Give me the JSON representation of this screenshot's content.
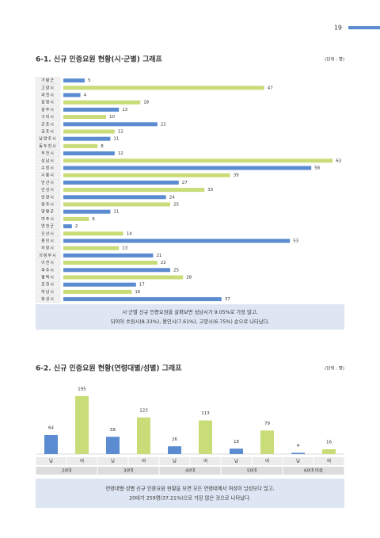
{
  "page_number": "19",
  "chart_data": [
    {
      "type": "hbar",
      "title": "6-1. 신규 인증요원 현황(시·군별) 그래프",
      "unit": "(단위 : 명)",
      "categories": [
        "가평군",
        "고양시",
        "과천시",
        "광명시",
        "광주시",
        "구리시",
        "군포시",
        "김포시",
        "남양주시",
        "동두천시",
        "부천시",
        "성남시",
        "수원시",
        "시흥시",
        "안산시",
        "안성시",
        "안양시",
        "양주시",
        "양평군",
        "여주시",
        "연천군",
        "오산시",
        "용인시",
        "의왕시",
        "의정부시",
        "이천시",
        "파주시",
        "평택시",
        "포천시",
        "하남시",
        "화성시"
      ],
      "values": [
        5,
        47,
        4,
        18,
        13,
        10,
        22,
        12,
        11,
        8,
        12,
        63,
        58,
        39,
        27,
        33,
        24,
        25,
        11,
        6,
        2,
        14,
        53,
        13,
        21,
        22,
        25,
        28,
        17,
        16,
        37
      ],
      "colors": [
        "#5b8bd0",
        "#c8dc78"
      ],
      "summary": [
        "시·군별 신규 인증요원을 살펴보면 성남시가 9.05%로 가장 많고,",
        "뒤이어 수원시(8.33%), 용인시(7.61%), 고양시(6.75%) 순으로 나타났다."
      ]
    },
    {
      "type": "bar",
      "title": "6-2. 신규 인증요원 현황(연령대별/성별) 그래프",
      "unit": "(단위 : 명)",
      "categories": [
        "남",
        "여",
        "남",
        "여",
        "남",
        "여",
        "남",
        "여",
        "남",
        "여"
      ],
      "groups": [
        "20대",
        "30대",
        "40대",
        "50대",
        "60대 이상"
      ],
      "values": [
        64,
        195,
        58,
        123,
        26,
        113,
        18,
        79,
        4,
        16
      ],
      "colors": [
        "#5b8bd0",
        "#c8dc78"
      ],
      "summary": [
        "연령대별·성별 신규 인증요원 현황을 보면 모든 연령대에서 여성이 남성보다 많고,",
        "20대가 259명(37.21%)으로 가장 많은 것으로 나타났다."
      ]
    }
  ]
}
